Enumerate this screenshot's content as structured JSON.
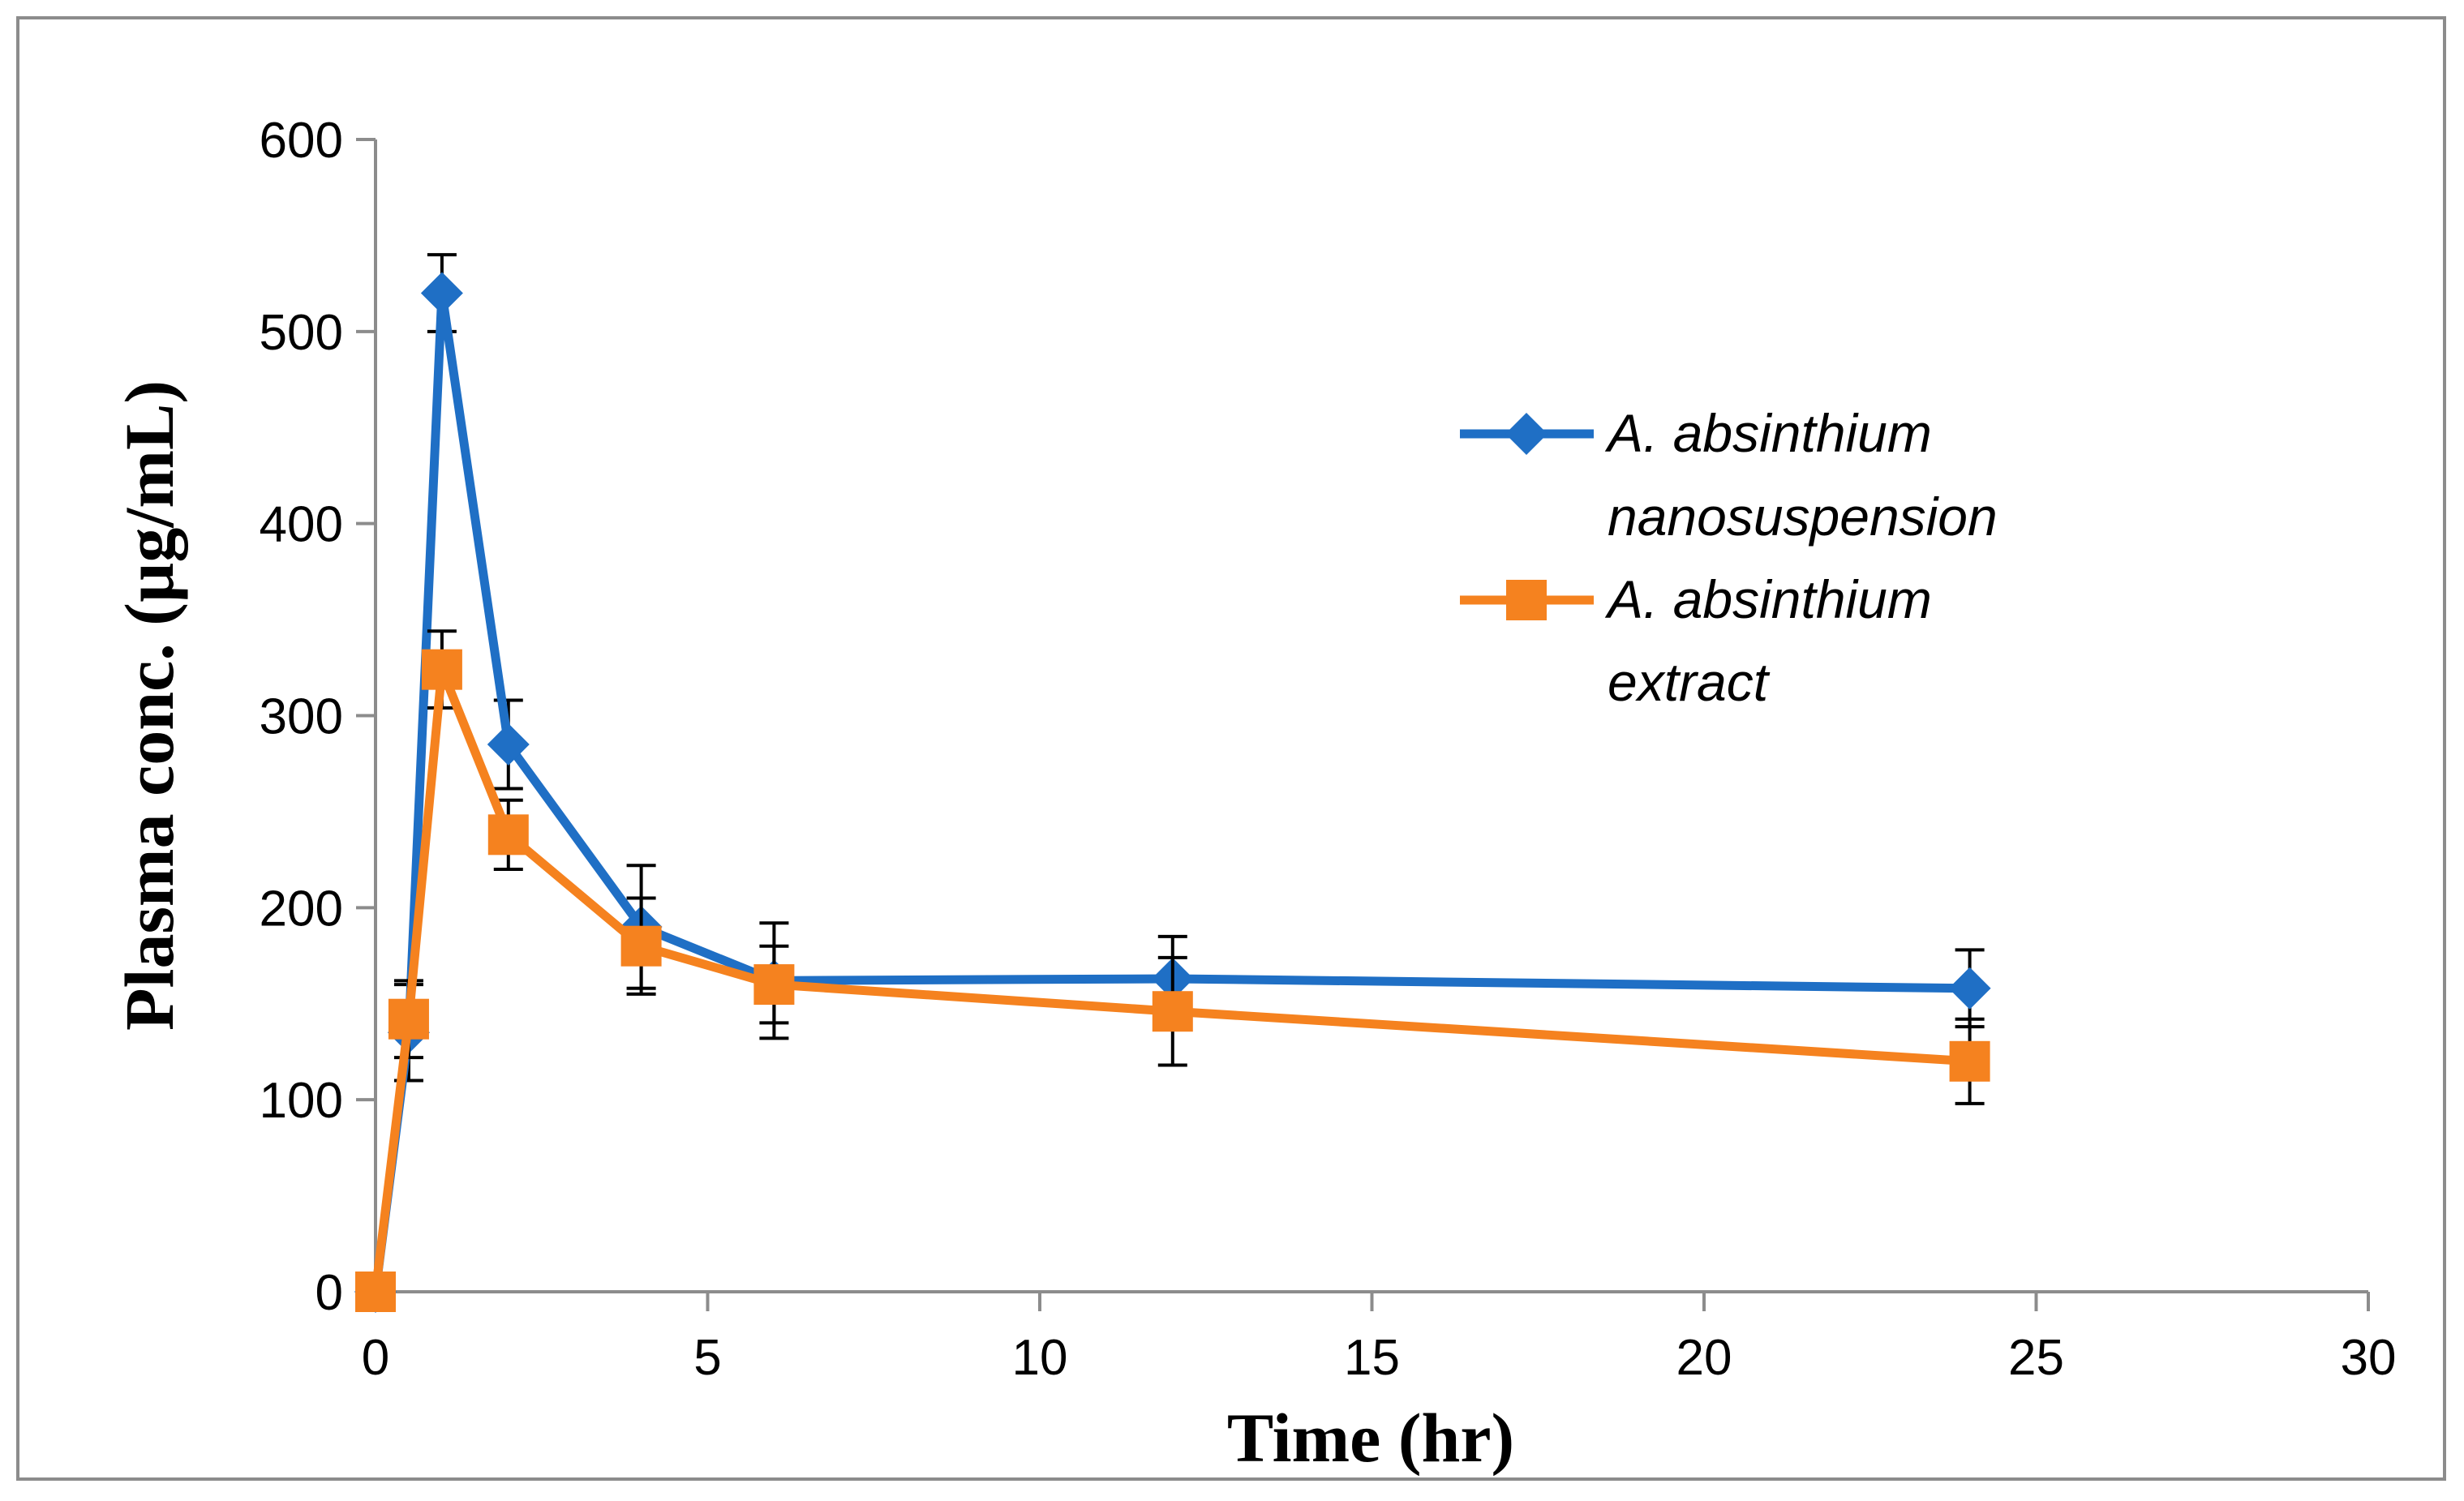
{
  "chart_data": {
    "type": "line",
    "title": "",
    "xlabel": "Time (hr)",
    "ylabel": "Plasma conc. (µg/mL)",
    "xlim": [
      0,
      30
    ],
    "ylim": [
      0,
      600
    ],
    "x_ticks": [
      0,
      5,
      10,
      15,
      20,
      25,
      30
    ],
    "y_ticks": [
      0,
      100,
      200,
      300,
      400,
      500,
      600
    ],
    "x_tick_labels": [
      "0",
      "5",
      "10",
      "15",
      "20",
      "25",
      "30"
    ],
    "y_tick_labels": [
      "0",
      "100",
      "200",
      "300",
      "400",
      "500",
      "600"
    ],
    "grid": false,
    "legend_position": "right",
    "series": [
      {
        "name": "A. absinthium nanosuspension",
        "legend_lines": [
          "A. absinthium",
          "nanosuspension"
        ],
        "color": "#1f6fc5",
        "marker": "diamond",
        "x": [
          0,
          0.5,
          1,
          2,
          4,
          6,
          12,
          24
        ],
        "y": [
          0,
          135,
          520,
          285,
          190,
          162,
          163,
          158
        ],
        "err": [
          0,
          25,
          20,
          23,
          32,
          30,
          22,
          20
        ]
      },
      {
        "name": "A. absinthium extract",
        "legend_lines": [
          "A. absinthium",
          "extract"
        ],
        "color": "#f5821f",
        "marker": "square",
        "x": [
          0,
          0.5,
          1,
          2,
          4,
          6,
          12,
          24
        ],
        "y": [
          0,
          142,
          324,
          238,
          180,
          160,
          146,
          120
        ],
        "err": [
          0,
          20,
          20,
          18,
          25,
          20,
          28,
          22
        ]
      }
    ]
  }
}
